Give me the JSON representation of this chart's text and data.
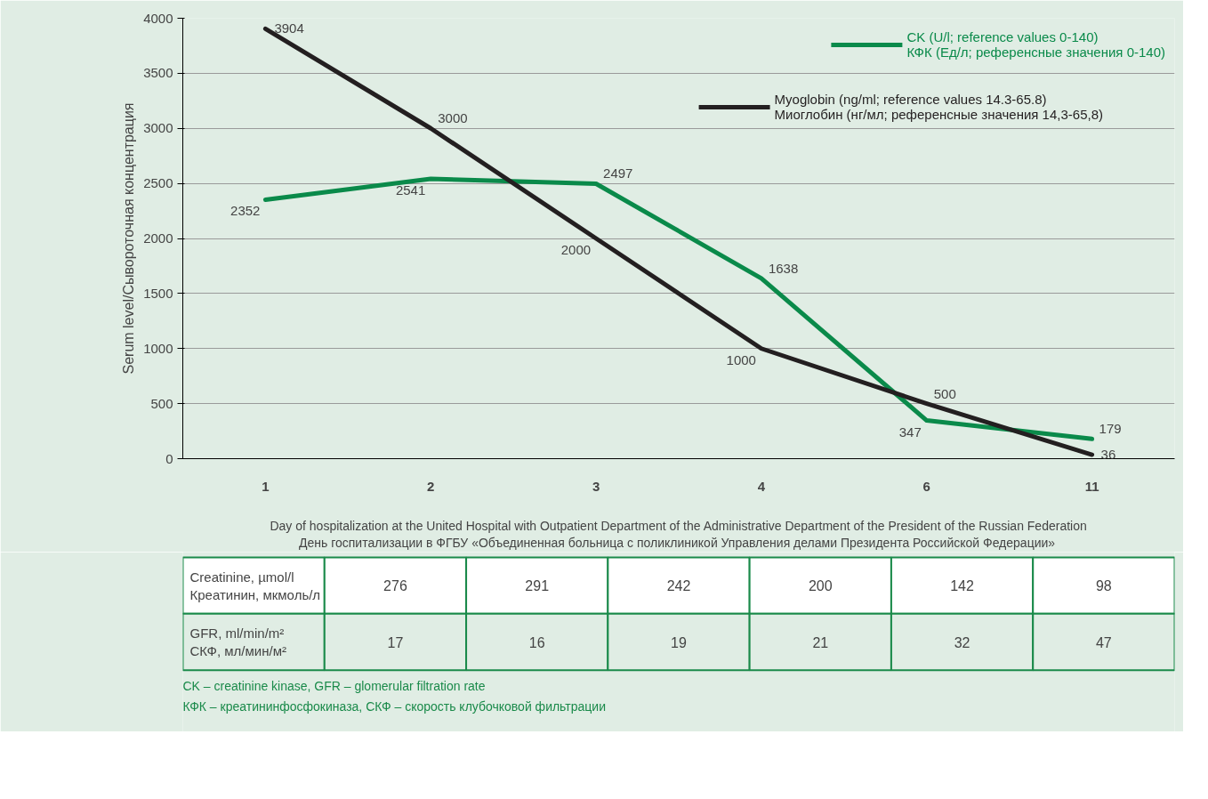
{
  "chart_data": [
    {
      "type": "line",
      "categories": [
        "1",
        "2",
        "3",
        "4",
        "6",
        "11"
      ],
      "xlabel": "Day of hospitalization at the United Hospital with Outpatient Department of the Administrative Department of the President of the Russian Federation\nДень госпитализации в ФГБУ «Объединенная больница с поликлиникой Управления делами Президента Российской  Федерации»",
      "ylabel": "Serum level/Сывороточная концентрация",
      "series": [
        {
          "name": "CK (U/l; reference values 0-140)\nКФК (Ед/л; референсные значения 0-140)",
          "color": "#0a8a4a",
          "values": [
            2352,
            2541,
            2497,
            1638,
            347,
            179
          ]
        },
        {
          "name": "Myoglobin (ng/ml; reference values 14.3-65.8)\nМиоглобин (нг/мл; референсные значения 14,3-65,8)",
          "color": "#231f20",
          "values": [
            3904,
            3000,
            2000,
            1000,
            500,
            36
          ]
        }
      ],
      "ylim": [
        0,
        4000
      ],
      "yticks": [
        0,
        500,
        1000,
        1500,
        2000,
        2500,
        3000,
        3500,
        4000
      ],
      "grid": "y",
      "legend": "top right",
      "data_labels": true,
      "tick_labels": "xy"
    },
    {
      "type": "other",
      "annotations": [
        "Creatinine, µmol/l\nКреатинин, мкмоль/л",
        "276",
        "291",
        "242",
        "200",
        "142",
        "98",
        "GFR, ml/min/m²\nСКФ, мл/мин/м²",
        "17",
        "16",
        "19",
        "21",
        "32",
        "47",
        "CK – creatinine kinase, GFR – glomerular filtration rate",
        "КФК – креатининфосфокиназа, СКФ – скорость клубочковой фильтрации"
      ]
    }
  ]
}
